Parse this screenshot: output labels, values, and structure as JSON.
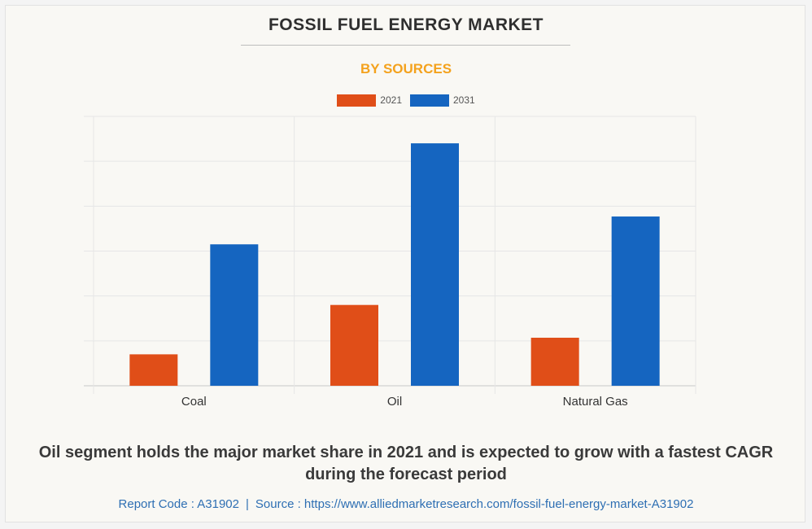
{
  "title": "FOSSIL FUEL ENERGY MARKET",
  "subtitle": "BY SOURCES",
  "caption": "Oil segment holds the major market share in 2021 and is expected to grow with a fastest CAGR during the forecast period",
  "footer": {
    "report_code": "Report Code : A31902",
    "separator": "|",
    "source": "Source : https://www.alliedmarketresearch.com/fossil-fuel-energy-market-A31902"
  },
  "colors": {
    "series_2021": "#e04e18",
    "series_2031": "#1565c0",
    "title": "#2f2f2f",
    "subtitle": "#f4a21d",
    "footer": "#2e6fb3"
  },
  "chart_data": {
    "type": "bar",
    "title": "FOSSIL FUEL ENERGY MARKET",
    "subtitle": "BY SOURCES",
    "categories": [
      "Coal",
      "Oil",
      "Natural Gas"
    ],
    "series": [
      {
        "name": "2021",
        "values": [
          0.7,
          1.8,
          1.07
        ]
      },
      {
        "name": "2031",
        "values": [
          3.15,
          5.4,
          3.77
        ]
      }
    ],
    "ylim": [
      0,
      6
    ],
    "y_tick_labels_shown": false,
    "grid": true,
    "legend_position": "top-center"
  }
}
